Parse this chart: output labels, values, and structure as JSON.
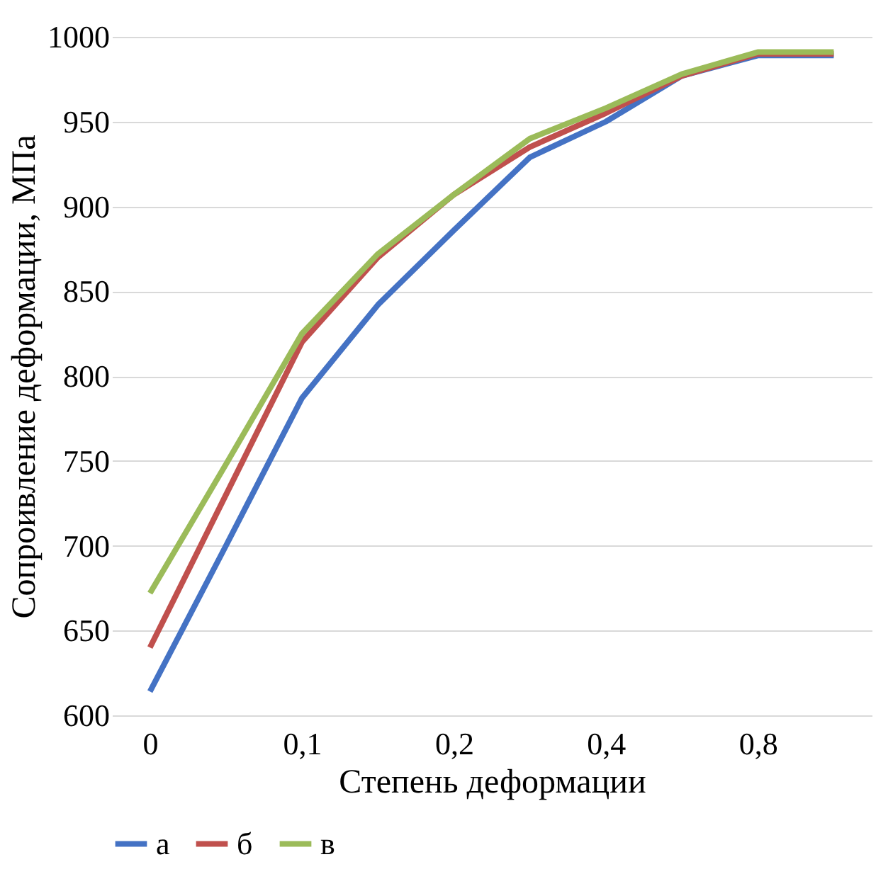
{
  "chart_data": {
    "type": "line",
    "xlabel": "Степень деформации",
    "ylabel": "Сопроивление деформации, МПа",
    "categories": [
      "0",
      null,
      "0,1",
      null,
      "0,2",
      null,
      "0,4",
      null,
      "0,8",
      null
    ],
    "series": [
      {
        "name": "а",
        "color": "#4472c4",
        "values": [
          614,
          700,
          787,
          842,
          886,
          929,
          950,
          977,
          989,
          989
        ]
      },
      {
        "name": "б",
        "color": "#c0504d",
        "values": [
          640,
          730,
          820,
          870,
          907,
          935,
          955,
          977,
          990,
          990
        ]
      },
      {
        "name": "в",
        "color": "#9bbb59",
        "values": [
          672,
          748,
          825,
          872,
          907,
          940,
          958,
          978,
          991,
          991
        ]
      }
    ],
    "ylim": [
      600,
      1000
    ],
    "yticks": [
      600,
      650,
      700,
      750,
      800,
      850,
      900,
      950,
      1000
    ],
    "grid": "y",
    "legend": "bottom",
    "marker": "none",
    "line_style": "solid"
  }
}
